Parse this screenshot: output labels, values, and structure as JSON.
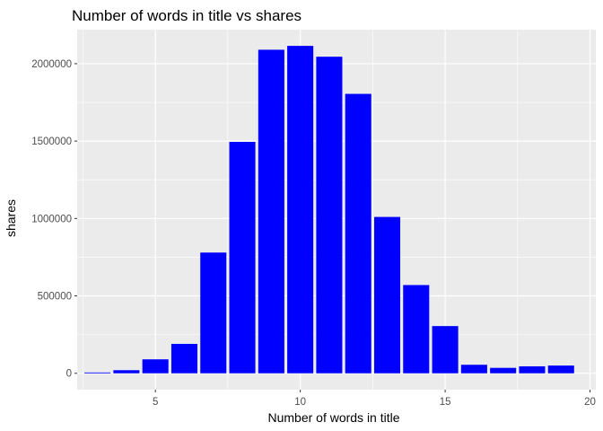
{
  "chart_data": {
    "type": "bar",
    "title": "Number of words in title vs shares",
    "xlabel": "Number of words in title",
    "ylabel": "shares",
    "x": [
      3,
      4,
      5,
      6,
      7,
      8,
      9,
      10,
      11,
      12,
      13,
      14,
      15,
      16,
      17,
      18,
      19
    ],
    "values": [
      5000,
      20000,
      90000,
      190000,
      780000,
      1495000,
      2090000,
      2115000,
      2045000,
      1805000,
      1010000,
      570000,
      305000,
      55000,
      35000,
      45000,
      50000
    ],
    "xlim": [
      2.3,
      20.2
    ],
    "ylim": [
      -106000,
      2220000
    ],
    "x_ticks": [
      5,
      10,
      15,
      20
    ],
    "x_tick_labels": [
      "5",
      "10",
      "15",
      "20"
    ],
    "y_ticks": [
      0,
      500000,
      1000000,
      1500000,
      2000000
    ],
    "y_tick_labels": [
      "0",
      "500000",
      "1000000",
      "1500000",
      "2000000"
    ],
    "bar_color": "#0000ff",
    "panel_background": "#ebebeb",
    "grid_color": "#ffffff",
    "grid": true,
    "legend": "none"
  }
}
